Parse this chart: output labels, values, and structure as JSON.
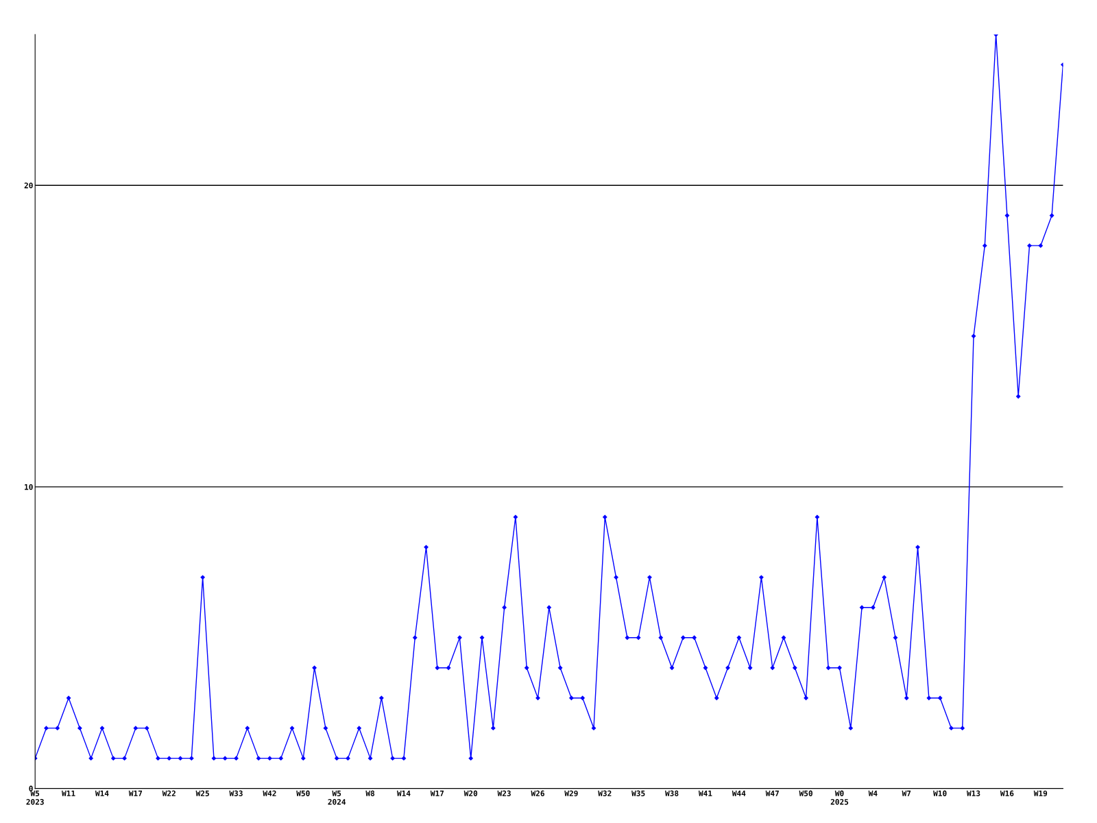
{
  "chart_data": {
    "type": "line",
    "categories": [
      "W5\n2023",
      null,
      null,
      "W11",
      null,
      null,
      "W14",
      null,
      null,
      "W17",
      null,
      null,
      "W22",
      null,
      null,
      "W25",
      null,
      null,
      "W33",
      null,
      null,
      "W42",
      null,
      null,
      "W50",
      null,
      null,
      "W5\n2024",
      null,
      null,
      "W8",
      null,
      null,
      "W14",
      null,
      null,
      "W17",
      null,
      null,
      "W20",
      null,
      null,
      "W23",
      null,
      null,
      "W26",
      null,
      null,
      "W29",
      null,
      null,
      "W32",
      null,
      null,
      "W35",
      null,
      null,
      "W38",
      null,
      null,
      "W41",
      null,
      null,
      "W44",
      null,
      null,
      "W47",
      null,
      null,
      "W50",
      null,
      null,
      "W0\n2025",
      null,
      null,
      "W4",
      null,
      null,
      "W7",
      null,
      null,
      "W10",
      null,
      null,
      "W13",
      null,
      null,
      "W16",
      null,
      null,
      "W19",
      null,
      null
    ],
    "series": [
      {
        "color": "#0000ff",
        "values": [
          1,
          2,
          2,
          3,
          2,
          1,
          2,
          1,
          1,
          2,
          2,
          1,
          1,
          1,
          1,
          7,
          1,
          1,
          1,
          2,
          1,
          1,
          1,
          2,
          1,
          4,
          2,
          1,
          1,
          2,
          1,
          3,
          1,
          1,
          5,
          8,
          4,
          4,
          5,
          1,
          5,
          2,
          6,
          9,
          4,
          3,
          6,
          4,
          3,
          3,
          2,
          9,
          7,
          5,
          5,
          7,
          5,
          4,
          5,
          5,
          4,
          3,
          4,
          5,
          4,
          7,
          4,
          5,
          4,
          3,
          9,
          4,
          4,
          2,
          6,
          6,
          7,
          5,
          3,
          8,
          3,
          3,
          2,
          2,
          15,
          18,
          25,
          19,
          13,
          18,
          18,
          19,
          24
        ]
      }
    ],
    "ylim": [
      0,
      25
    ],
    "yticks": [
      0,
      10,
      20
    ],
    "grid": "y",
    "marker": "diamond",
    "line_style": "solid"
  }
}
